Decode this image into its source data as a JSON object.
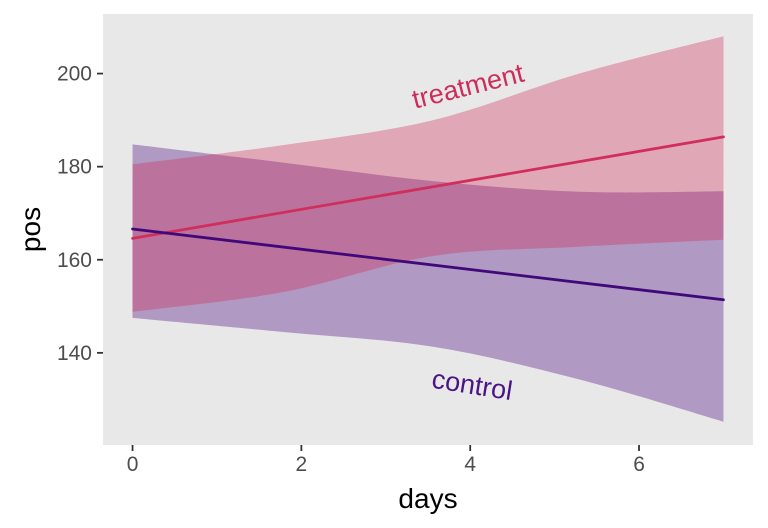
{
  "chart_data": {
    "type": "line",
    "subtype": "regression lines with confidence ribbons, directly labelled",
    "title": "",
    "xlabel": "days",
    "ylabel": "pos",
    "x_domain": [
      -0.35,
      7.35
    ],
    "y_domain": [
      120.2,
      212.8
    ],
    "x_ticks": [
      0,
      2,
      4,
      6
    ],
    "y_ticks": [
      140,
      160,
      180,
      200
    ],
    "grid": "off",
    "legend": "none",
    "panel_bg": "#e9e8e8",
    "axis": {
      "tick_color": "#333333",
      "tick_label_color": "#4d4d4d",
      "title_color": "#000000"
    },
    "series": [
      {
        "name": "control",
        "line_color": "#41087a",
        "fill_color": "#48067f",
        "fill_opacity": 0.35,
        "line": {
          "x": [
            0,
            7
          ],
          "y": [
            166.6,
            151.4
          ]
        },
        "band": {
          "x": [
            0,
            1.77,
            3.56,
            5.29,
            7
          ],
          "upper": [
            184.8,
            180.9,
            176.9,
            174.6,
            174.7
          ],
          "lower": [
            147.5,
            144.5,
            141.3,
            134.3,
            125.2
          ]
        },
        "label": {
          "text": "control",
          "x": 4.02,
          "y": 132.7,
          "rotation_deg": 9,
          "color": "#4b1486"
        }
      },
      {
        "name": "treatment",
        "line_color": "#d02e5c",
        "fill_color": "#d12e59",
        "fill_opacity": 0.35,
        "line": {
          "x": [
            0,
            7
          ],
          "y": [
            164.6,
            186.4
          ]
        },
        "band": {
          "x": [
            0,
            1.77,
            3.56,
            5.29,
            7
          ],
          "upper": [
            180.5,
            184.6,
            190.0,
            200.0,
            208.0
          ],
          "lower": [
            148.8,
            153.0,
            160.8,
            162.8,
            164.3
          ]
        },
        "label": {
          "text": "treatment",
          "x": 3.98,
          "y": 196.9,
          "rotation_deg": -14,
          "color": "#cc2d5c"
        }
      }
    ]
  }
}
